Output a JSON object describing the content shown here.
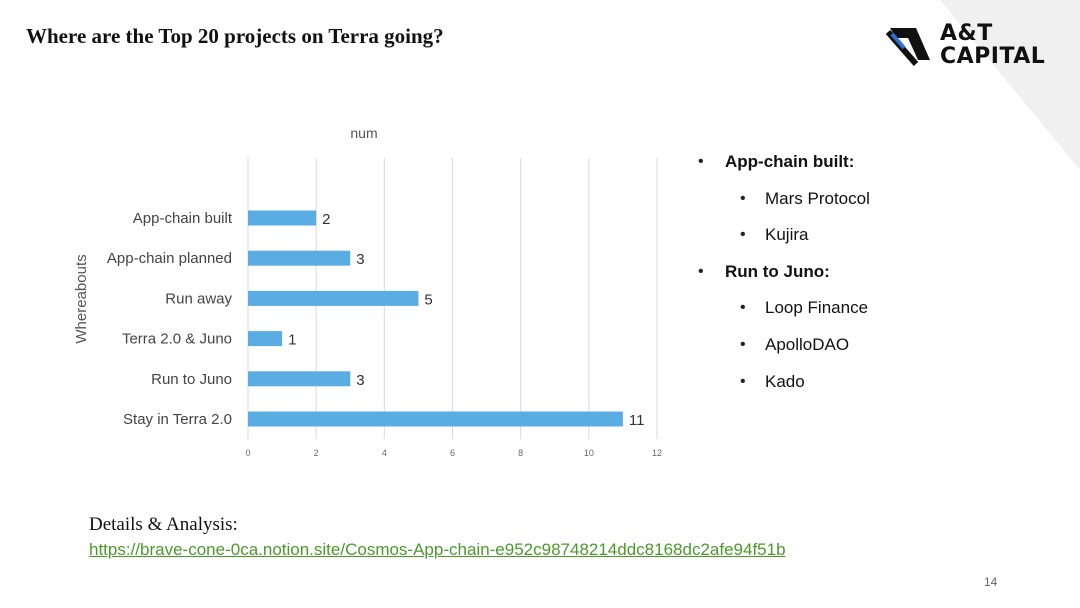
{
  "slide": {
    "title": "Where are the Top 20 projects on Terra going?",
    "page_number": "14"
  },
  "logo": {
    "line1": "A&T",
    "line2": "CAPITAL",
    "accent_color": "#2f6fd6"
  },
  "chart_data": {
    "type": "bar",
    "orientation": "horizontal",
    "title": "num",
    "xlabel": "",
    "ylabel": "Whereabouts",
    "categories": [
      "App-chain built",
      "App-chain planned",
      "Run away",
      "Terra 2.0 & Juno",
      "Run to Juno",
      "Stay in Terra 2.0"
    ],
    "values": [
      2,
      3,
      5,
      1,
      3,
      11
    ],
    "xlim": [
      0,
      12
    ],
    "xticks": [
      "0",
      "2",
      "4",
      "6",
      "8",
      "10",
      "12"
    ],
    "grid": true,
    "data_labels": true,
    "bar_color": "#5aade3"
  },
  "bullets": [
    {
      "level": 1,
      "text": "App-chain built:"
    },
    {
      "level": 2,
      "text": "Mars Protocol"
    },
    {
      "level": 2,
      "text": "Kujira"
    },
    {
      "level": 1,
      "text": "Run to Juno:"
    },
    {
      "level": 2,
      "text": "Loop Finance"
    },
    {
      "level": 2,
      "text": "ApolloDAO"
    },
    {
      "level": 2,
      "text": "Kado"
    }
  ],
  "details": {
    "label": "Details & Analysis:",
    "link": "https://brave-cone-0ca.notion.site/Cosmos-App-chain-e952c98748214ddc8168dc2afe94f51b"
  }
}
